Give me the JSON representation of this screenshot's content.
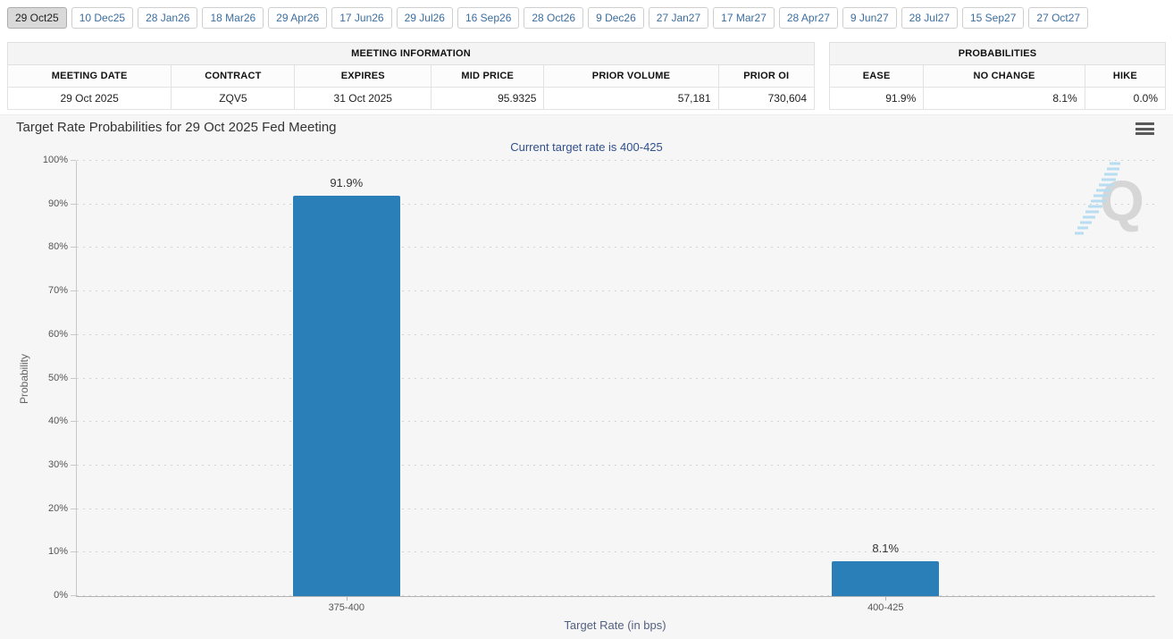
{
  "tabs": {
    "items": [
      {
        "label": "29 Oct25",
        "active": true
      },
      {
        "label": "10 Dec25",
        "active": false
      },
      {
        "label": "28 Jan26",
        "active": false
      },
      {
        "label": "18 Mar26",
        "active": false
      },
      {
        "label": "29 Apr26",
        "active": false
      },
      {
        "label": "17 Jun26",
        "active": false
      },
      {
        "label": "29 Jul26",
        "active": false
      },
      {
        "label": "16 Sep26",
        "active": false
      },
      {
        "label": "28 Oct26",
        "active": false
      },
      {
        "label": "9 Dec26",
        "active": false
      },
      {
        "label": "27 Jan27",
        "active": false
      },
      {
        "label": "17 Mar27",
        "active": false
      },
      {
        "label": "28 Apr27",
        "active": false
      },
      {
        "label": "9 Jun27",
        "active": false
      },
      {
        "label": "28 Jul27",
        "active": false
      },
      {
        "label": "15 Sep27",
        "active": false
      },
      {
        "label": "27 Oct27",
        "active": false
      }
    ]
  },
  "meeting_info": {
    "title": "MEETING INFORMATION",
    "columns": [
      {
        "label": "MEETING DATE",
        "value": "29 Oct 2025",
        "align": "center",
        "width": "20.3%"
      },
      {
        "label": "CONTRACT",
        "value": "ZQV5",
        "align": "center",
        "width": "15.3%"
      },
      {
        "label": "EXPIRES",
        "value": "31 Oct 2025",
        "align": "center",
        "width": "16.9%"
      },
      {
        "label": "MID PRICE",
        "value": "95.9325",
        "align": "right",
        "width": "14.0%"
      },
      {
        "label": "PRIOR VOLUME",
        "value": "57,181",
        "align": "right",
        "width": "21.6%"
      },
      {
        "label": "PRIOR OI",
        "value": "730,604",
        "align": "right",
        "width": "11.9%"
      }
    ]
  },
  "probabilities": {
    "title": "PROBABILITIES",
    "columns": [
      {
        "label": "EASE",
        "value": "91.9%",
        "align": "right",
        "width": "28%"
      },
      {
        "label": "NO CHANGE",
        "value": "8.1%",
        "align": "right",
        "width": "48%"
      },
      {
        "label": "HIKE",
        "value": "0.0%",
        "align": "right",
        "width": "24%"
      }
    ]
  },
  "chart_data": {
    "type": "bar",
    "title": "Target Rate Probabilities for 29 Oct 2025 Fed Meeting",
    "subtitle": "Current target rate is 400-425",
    "categories": [
      "375-400",
      "400-425"
    ],
    "values": [
      91.9,
      8.1
    ],
    "value_labels": [
      "91.9%",
      "8.1%"
    ],
    "xlabel": "Target Rate (in bps)",
    "ylabel": "Probability",
    "ylim": [
      0,
      100
    ],
    "ytick_step": 10,
    "ytick_suffix": "%",
    "grid": "horizontal-dotted",
    "legend": "none",
    "bar_color": "#2b7fb8",
    "subtitle_color": "#31508c"
  },
  "icons": {
    "menu": "hamburger-menu",
    "watermark": "quikstrike-q-logo"
  },
  "colors": {
    "accent_blue": "#2b7fb8",
    "link_blue": "#3c6e9f"
  }
}
